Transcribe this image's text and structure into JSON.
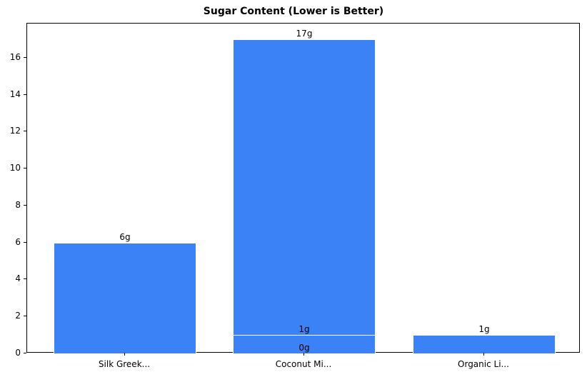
{
  "chart_data": {
    "type": "bar",
    "title": "Sugar Content (Lower is Better)",
    "xlabel": "",
    "ylabel": "",
    "ylim": [
      0,
      17.85
    ],
    "yticks": [
      0,
      2,
      4,
      6,
      8,
      10,
      12,
      14,
      16
    ],
    "categories": [
      "Silk Greek...",
      "Coconut Mi...",
      "Organic Li..."
    ],
    "bars": [
      {
        "category": "Silk Greek...",
        "value": 6,
        "label": "6g"
      },
      {
        "category": "Coconut Mi...",
        "value": 17,
        "label": "17g"
      },
      {
        "category": "Coconut Mi...",
        "value": 1,
        "label": "1g"
      },
      {
        "category": "Coconut Mi...",
        "value": 0,
        "label": "0g"
      },
      {
        "category": "Organic Li...",
        "value": 1,
        "label": "1g"
      }
    ],
    "bar_color": "#3b82f6",
    "grid": false,
    "legend": null
  }
}
